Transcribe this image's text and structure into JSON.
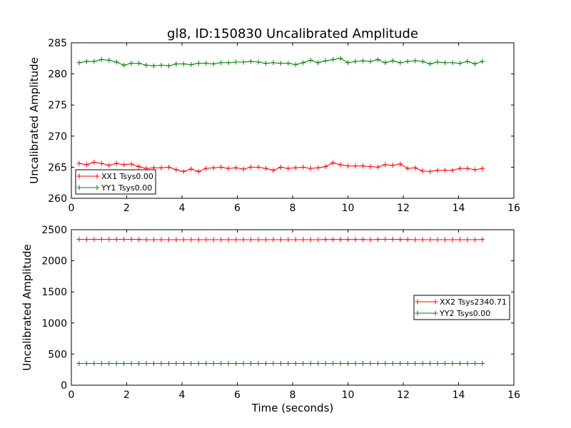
{
  "chart_data": [
    {
      "type": "line",
      "title": "gl8, ID:150830 Uncalibrated Amplitude",
      "xlabel": "",
      "ylabel": "Uncalibrated Amplitude",
      "xlim": [
        0,
        16
      ],
      "ylim": [
        260,
        285
      ],
      "xticks": [
        "0",
        "2",
        "4",
        "6",
        "8",
        "10",
        "12",
        "14",
        "16"
      ],
      "yticks": [
        "260",
        "265",
        "270",
        "275",
        "280",
        "285"
      ],
      "legend_position": "lower-left",
      "x": [
        0.28,
        0.55,
        0.82,
        1.09,
        1.36,
        1.63,
        1.9,
        2.17,
        2.44,
        2.71,
        2.98,
        3.25,
        3.52,
        3.79,
        4.06,
        4.33,
        4.6,
        4.87,
        5.14,
        5.41,
        5.68,
        5.95,
        6.22,
        6.49,
        6.76,
        7.03,
        7.3,
        7.57,
        7.84,
        8.11,
        8.38,
        8.65,
        8.92,
        9.19,
        9.46,
        9.73,
        10.0,
        10.27,
        10.54,
        10.81,
        11.08,
        11.35,
        11.62,
        11.89,
        12.16,
        12.43,
        12.7,
        12.97,
        13.24,
        13.51,
        13.78,
        14.05,
        14.32,
        14.59,
        14.86
      ],
      "series": [
        {
          "name": "XX1 Tsys0.00",
          "color": "#ff0000",
          "values": [
            265.6,
            265.4,
            265.8,
            265.6,
            265.3,
            265.6,
            265.4,
            265.5,
            265.1,
            264.8,
            264.9,
            264.9,
            265.0,
            264.6,
            264.3,
            264.7,
            264.3,
            264.8,
            264.9,
            265.0,
            264.8,
            264.9,
            264.7,
            265.0,
            265.0,
            264.8,
            264.5,
            265.0,
            264.8,
            264.9,
            265.0,
            264.8,
            264.9,
            265.1,
            265.7,
            265.4,
            265.2,
            265.2,
            265.2,
            265.1,
            265.0,
            265.4,
            265.3,
            265.5,
            264.8,
            264.9,
            264.4,
            264.3,
            264.5,
            264.5,
            264.5,
            264.8,
            264.8,
            264.6,
            264.8
          ]
        },
        {
          "name": "YY1 Tsys0.00",
          "color": "#008000",
          "values": [
            281.8,
            282.0,
            282.0,
            282.3,
            282.2,
            281.9,
            281.4,
            281.7,
            281.7,
            281.4,
            281.3,
            281.4,
            281.3,
            281.6,
            281.6,
            281.5,
            281.7,
            281.7,
            281.6,
            281.8,
            281.8,
            281.9,
            281.9,
            282.0,
            281.9,
            281.7,
            281.8,
            281.7,
            281.7,
            281.5,
            281.8,
            282.2,
            281.8,
            282.1,
            282.3,
            282.5,
            281.8,
            282.0,
            282.1,
            282.0,
            282.3,
            281.8,
            282.1,
            281.8,
            282.0,
            282.1,
            282.0,
            281.6,
            281.9,
            281.8,
            281.8,
            281.7,
            282.0,
            281.6,
            282.0
          ]
        }
      ]
    },
    {
      "type": "line",
      "title": "",
      "xlabel": "Time (seconds)",
      "ylabel": "Uncalibrated Amplitude",
      "xlim": [
        0,
        16
      ],
      "ylim": [
        0,
        2500
      ],
      "xticks": [
        "0",
        "2",
        "4",
        "6",
        "8",
        "10",
        "12",
        "14",
        "16"
      ],
      "yticks": [
        "0",
        "500",
        "1000",
        "1500",
        "2000",
        "2500"
      ],
      "legend_position": "center-right",
      "x": [
        0.28,
        0.55,
        0.82,
        1.09,
        1.36,
        1.63,
        1.9,
        2.17,
        2.44,
        2.71,
        2.98,
        3.25,
        3.52,
        3.79,
        4.06,
        4.33,
        4.6,
        4.87,
        5.14,
        5.41,
        5.68,
        5.95,
        6.22,
        6.49,
        6.76,
        7.03,
        7.3,
        7.57,
        7.84,
        8.11,
        8.38,
        8.65,
        8.92,
        9.19,
        9.46,
        9.73,
        10.0,
        10.27,
        10.54,
        10.81,
        11.08,
        11.35,
        11.62,
        11.89,
        12.16,
        12.43,
        12.7,
        12.97,
        13.24,
        13.51,
        13.78,
        14.05,
        14.32,
        14.59,
        14.86
      ],
      "series": [
        {
          "name": "XX2 Tsys2340.71",
          "color": "#ff0000",
          "values": [
            2345,
            2345,
            2345,
            2345,
            2345,
            2345,
            2345,
            2345,
            2342,
            2340,
            2340,
            2340,
            2340,
            2340,
            2340,
            2340,
            2340,
            2340,
            2340,
            2340,
            2340,
            2340,
            2340,
            2340,
            2340,
            2340,
            2340,
            2340,
            2340,
            2340,
            2340,
            2340,
            2340,
            2342,
            2342,
            2342,
            2342,
            2342,
            2342,
            2340,
            2342,
            2345,
            2345,
            2342,
            2342,
            2340,
            2340,
            2340,
            2340,
            2340,
            2340,
            2340,
            2340,
            2340,
            2342
          ]
        },
        {
          "name": "YY2 Tsys0.00",
          "color": "#008000",
          "values": [
            350,
            350,
            350,
            350,
            350,
            350,
            350,
            350,
            350,
            350,
            350,
            350,
            350,
            350,
            350,
            350,
            350,
            350,
            350,
            350,
            350,
            350,
            350,
            350,
            350,
            350,
            350,
            350,
            350,
            350,
            350,
            350,
            350,
            350,
            350,
            350,
            350,
            350,
            350,
            350,
            350,
            350,
            350,
            350,
            350,
            350,
            350,
            350,
            350,
            350,
            350,
            350,
            350,
            350,
            350
          ]
        }
      ]
    }
  ]
}
